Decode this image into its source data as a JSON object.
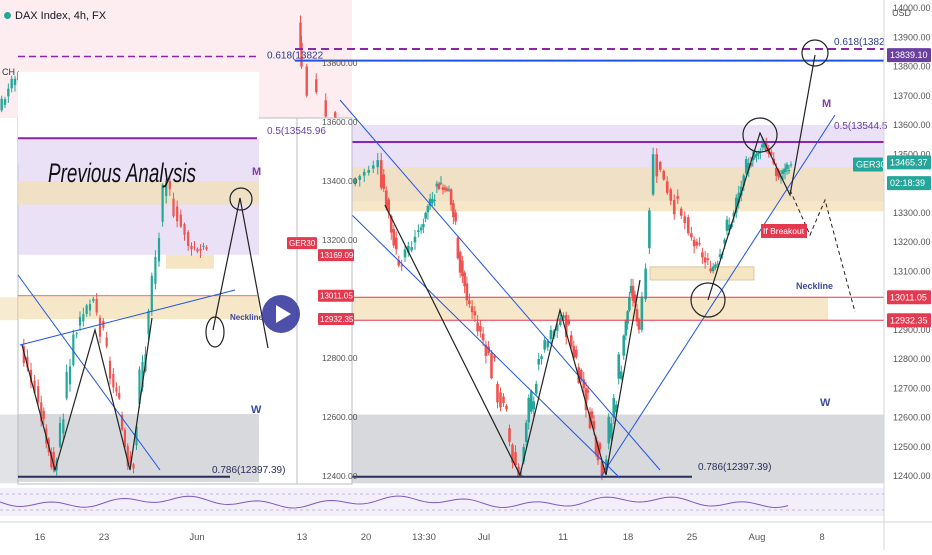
{
  "header": {
    "title": "DAX Index, 4h, FX",
    "currency": "USD",
    "small_tag": "CH",
    "inset_label": "Previous Analysis"
  },
  "colors": {
    "up": "#26a69a",
    "down": "#ef5350",
    "purple_line": "#8e24aa",
    "blue_line": "#1e53e5",
    "zone_purple": "#d9c9f0",
    "zone_tan": "#f2dfb4",
    "zone_gray": "#b7b9c0",
    "accent_red": "#e53950"
  },
  "chart_data": [
    {
      "type": "candlestick",
      "title": "DAX Index, 4h, FX",
      "ylabel": "USD",
      "ylim": [
        12360,
        14010
      ],
      "y_ticks": [
        "14000.00",
        "13900.00",
        "13800.00",
        "13700.00",
        "13600.00",
        "13500.00",
        "13400.00",
        "13300.00",
        "13200.00",
        "13100.00",
        "12900.00",
        "12800.00",
        "12700.00",
        "12600.00",
        "12500.00",
        "12400.00"
      ],
      "x_ticks": [
        "16",
        "23",
        "Jun",
        "13",
        "20",
        "13:30",
        "Jul",
        "11",
        "18",
        "25",
        "Aug",
        "8"
      ],
      "price_tags": [
        {
          "label": "13839.10",
          "value": 13839.1
        },
        {
          "label": "GER30",
          "value": 13465
        },
        {
          "label": "13465.37",
          "value": 13465.37
        },
        {
          "label": "02:18:39",
          "value": 13415
        },
        {
          "label": "13011.05",
          "value": 13011.05
        },
        {
          "label": "12932.35",
          "value": 12932.35
        }
      ],
      "fib_labels": [
        "0.618(1382",
        "0.5(13544.5",
        "0.786(12397.39)"
      ],
      "annotations": [
        "M",
        "W",
        "Neckline",
        "If Breakout"
      ]
    },
    {
      "type": "candlestick",
      "title": "Previous Analysis",
      "ylim": [
        12330,
        14020
      ],
      "y_ticks": [
        "13800.00",
        "13600.00",
        "13400.00",
        "13200.00",
        "12800.00",
        "12600.00",
        "12400.00"
      ],
      "price_tags": [
        {
          "label": "GER30",
          "value": 13169.09
        },
        {
          "label": "13169.09",
          "value": 13169.09
        },
        {
          "label": "13011.05",
          "value": 13011.05
        },
        {
          "label": "12932.35",
          "value": 12932.35
        }
      ],
      "fib_labels": [
        "0.618(13822",
        "0.5(13545.96",
        "0.786(12397.39)"
      ],
      "annotations": [
        "M",
        "W",
        "Neckline"
      ]
    }
  ]
}
